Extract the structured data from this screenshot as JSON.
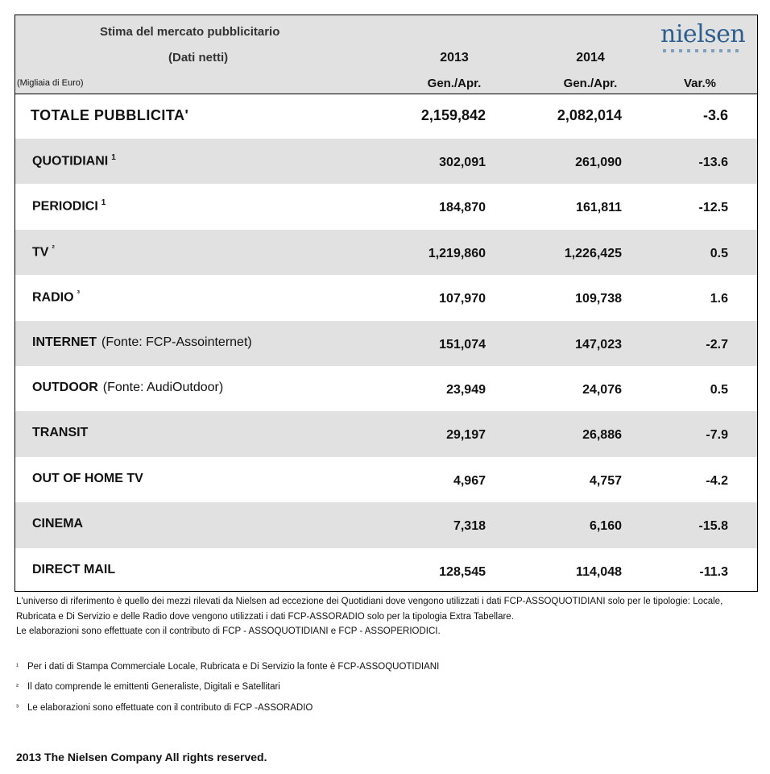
{
  "header": {
    "title": "Stima del mercato pubblicitario",
    "subtitle": "(Dati netti)",
    "unit": "(Migliaia di Euro)",
    "year_2013": "2013",
    "year_2014": "2014",
    "period_2013": "Gen./Apr.",
    "period_2014": "Gen./Apr.",
    "var_label": "Var.%",
    "logo": "nielsen"
  },
  "total": {
    "label": "TOTALE PUBBLICITA'",
    "v2013": "2,159,842",
    "v2014": "2,082,014",
    "var": "-3.6"
  },
  "rows": [
    {
      "label": "QUOTIDIANI",
      "sup": "1",
      "source": "",
      "v2013": "302,091",
      "v2014": "261,090",
      "var": "-13.6"
    },
    {
      "label": "PERIODICI",
      "sup": "1",
      "source": "",
      "v2013": "184,870",
      "v2014": "161,811",
      "var": "-12.5"
    },
    {
      "label": "TV",
      "sup": "²",
      "source": "",
      "v2013": "1,219,860",
      "v2014": "1,226,425",
      "var": "0.5"
    },
    {
      "label": "RADIO",
      "sup": "³",
      "source": "",
      "v2013": "107,970",
      "v2014": "109,738",
      "var": "1.6"
    },
    {
      "label": "INTERNET",
      "sup": "",
      "source": "(Fonte: FCP-Assointernet)",
      "v2013": "151,074",
      "v2014": "147,023",
      "var": "-2.7"
    },
    {
      "label": "OUTDOOR",
      "sup": "",
      "source": "(Fonte: AudiOutdoor)",
      "v2013": "23,949",
      "v2014": "24,076",
      "var": "0.5"
    },
    {
      "label": "TRANSIT",
      "sup": "",
      "source": "",
      "v2013": "29,197",
      "v2014": "26,886",
      "var": "-7.9"
    },
    {
      "label": "OUT OF HOME TV",
      "sup": "",
      "source": "",
      "v2013": "4,967",
      "v2014": "4,757",
      "var": "-4.2"
    },
    {
      "label": "CINEMA",
      "sup": "",
      "source": "",
      "v2013": "7,318",
      "v2014": "6,160",
      "var": "-15.8"
    },
    {
      "label": "DIRECT MAIL",
      "sup": "",
      "source": "",
      "v2013": "128,545",
      "v2014": "114,048",
      "var": "-11.3"
    }
  ],
  "notes": {
    "line1": "L'universo di riferimento è quello dei mezzi rilevati da Nielsen ad eccezione dei Quotidiani dove vengono utilizzati i dati FCP-ASSOQUOTIDIANI solo per le tipologie: Locale,",
    "line2": "Rubricata e Di Servizio e delle Radio dove vengono utilizzati i dati FCP-ASSORADIO solo per la tipologia Extra Tabellare.",
    "line3": "Le elaborazioni sono effettuate con il contributo di FCP - ASSOQUOTIDIANI e FCP - ASSOPERIODICI."
  },
  "footnotes": [
    {
      "mark": "¹",
      "text": "Per i dati di Stampa Commerciale Locale, Rubricata e Di Servizio la fonte è  FCP-ASSOQUOTIDIANI"
    },
    {
      "mark": "²",
      "text": "Il dato comprende le emittenti Generaliste, Digitali e Satellitari"
    },
    {
      "mark": "³",
      "text": "Le elaborazioni sono effettuate con il contributo di FCP -ASSORADIO"
    }
  ],
  "copyright": "2013 The Nielsen Company All rights reserved."
}
